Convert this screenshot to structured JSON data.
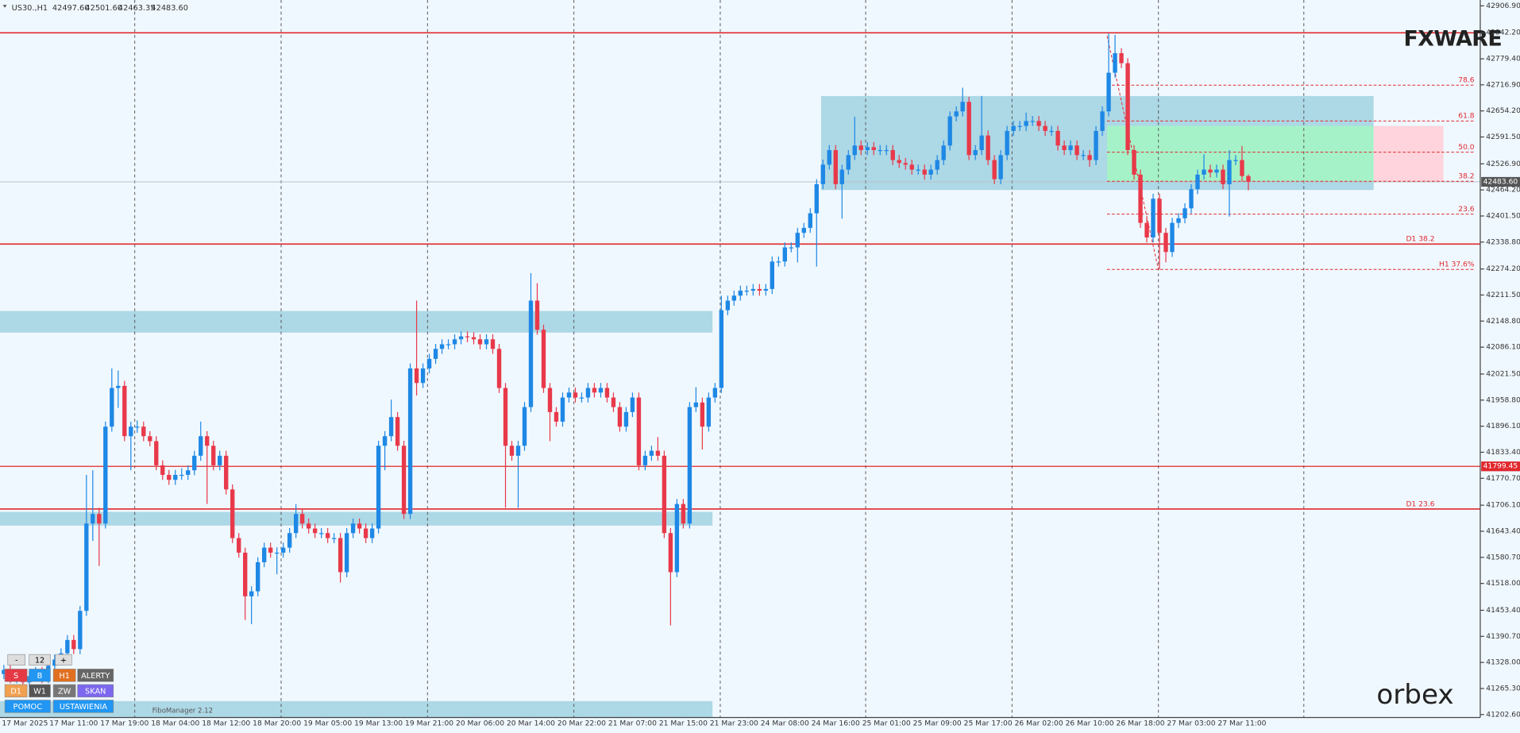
{
  "chart_data": {
    "type": "candlestick",
    "header": {
      "symbol": "US30.,H1",
      "ohlc": [
        "42497.60",
        "42501.60",
        "42463.35",
        "42483.60"
      ]
    },
    "categories": [
      "17 Mar 2025",
      null,
      null,
      null,
      null,
      null,
      null,
      null,
      null,
      null,
      null,
      "17 Mar 11:00",
      null,
      null,
      null,
      null,
      null,
      null,
      null,
      "17 Mar 19:00",
      null,
      null,
      null,
      null,
      null,
      null,
      null,
      "18 Mar 04:00",
      null,
      null,
      null,
      null,
      null,
      null,
      null,
      "18 Mar 12:00",
      null,
      null,
      null,
      null,
      null,
      null,
      null,
      "18 Mar 20:00",
      null,
      null,
      null,
      null,
      null,
      null,
      null,
      "19 Mar 05:00",
      null,
      null,
      null,
      null,
      null,
      null,
      null,
      "19 Mar 13:00",
      null,
      null,
      null,
      null,
      null,
      null,
      null,
      "19 Mar 21:00",
      null,
      null,
      null,
      null,
      null,
      null,
      null,
      "20 Mar 06:00",
      null,
      null,
      null,
      null,
      null,
      null,
      null,
      "20 Mar 14:00",
      null,
      null,
      null,
      null,
      null,
      null,
      null,
      "20 Mar 22:00",
      null,
      null,
      null,
      null,
      null,
      null,
      null,
      "21 Mar 07:00",
      null,
      null,
      null,
      null,
      null,
      null,
      null,
      "21 Mar 15:00",
      null,
      null,
      null,
      null,
      null,
      null,
      null,
      "21 Mar 23:00",
      null,
      null,
      null,
      null,
      null,
      null,
      null,
      "24 Mar 08:00",
      null,
      null,
      null,
      null,
      null,
      null,
      null,
      "24 Mar 16:00",
      null,
      null,
      null,
      null,
      null,
      null,
      null,
      "25 Mar 01:00",
      null,
      null,
      null,
      null,
      null,
      null,
      null,
      "25 Mar 09:00",
      null,
      null,
      null,
      null,
      null,
      null,
      null,
      "25 Mar 17:00",
      null,
      null,
      null,
      null,
      null,
      null,
      null,
      "26 Mar 02:00",
      null,
      null,
      null,
      null,
      null,
      null,
      null,
      "26 Mar 10:00",
      null,
      null,
      null,
      null,
      null,
      null,
      null,
      "26 Mar 18:00",
      null,
      null,
      null,
      null,
      null,
      null,
      null,
      "27 Mar 03:00",
      null,
      null,
      null,
      null,
      null,
      null,
      null,
      "27 Mar 11:00",
      null
    ],
    "open": [
      41300,
      41310,
      41290,
      41300,
      41280,
      41295,
      41305,
      41290,
      41320,
      41335,
      41350,
      41382,
      41360,
      41452,
      41662,
      41685,
      41662,
      41895,
      41988,
      41993,
      41872,
      41895,
      41895,
      41872,
      41860,
      41802,
      41779,
      41767,
      41779,
      41779,
      41790,
      41825,
      41872,
      41849,
      41802,
      41825,
      41744,
      41627,
      41592,
      41487,
      41499,
      41569,
      41604,
      41592,
      41592,
      41604,
      41639,
      41685,
      41662,
      41650,
      41639,
      41639,
      41627,
      41627,
      41545,
      41639,
      41662,
      41650,
      41627,
      41650,
      41849,
      41872,
      41918,
      41849,
      41685,
      42035,
      42000,
      42035,
      42058,
      42082,
      42093,
      42093,
      42105,
      42112,
      42110,
      42105,
      42093,
      42105,
      42082,
      41988,
      41849,
      41825,
      41849,
      41942,
      42198,
      42128,
      41988,
      41930,
      41907,
      41965,
      41977,
      41965,
      41965,
      41988,
      41977,
      41988,
      41965,
      41942,
      41895,
      41930,
      41965,
      41802,
      41825,
      41837,
      41825,
      41639,
      41545,
      41709,
      41662,
      41942,
      41953,
      41895,
      41965,
      41988,
      42175,
      42198,
      42210,
      42222,
      42222,
      42226,
      42222,
      42226,
      42292,
      42292,
      42326,
      42326,
      42361,
      42373,
      42408,
      42478,
      42525,
      42560,
      42478,
      42513,
      42548,
      42571,
      42560,
      42567,
      42560,
      42560,
      42560,
      42536,
      42529,
      42525,
      42513,
      42513,
      42501,
      42513,
      42536,
      42571,
      42641,
      42653,
      42676,
      42548,
      42560,
      42595,
      42536,
      42490,
      42548,
      42606,
      42618,
      42618,
      42630,
      42630,
      42618,
      42606,
      42606,
      42571,
      42560,
      42571,
      42548,
      42548,
      42536,
      42606,
      42653,
      42746,
      42793,
      42769,
      42560,
      42501,
      42385,
      42350,
      42443,
      42361,
      42315,
      42385,
      42396,
      42420,
      42466,
      42501,
      42513,
      42506,
      42513,
      42478,
      42536,
      42536,
      42497.6
    ],
    "high": [
      41322,
      41322,
      41312,
      41312,
      41307,
      41317,
      41317,
      41332,
      41347,
      41362,
      41394,
      41394,
      41464,
      41779,
      41790,
      41700,
      41907,
      42035,
      42030,
      42005,
      41907,
      41910,
      41907,
      41884,
      41872,
      41814,
      41791,
      41791,
      41795,
      41802,
      41837,
      41907,
      41884,
      41861,
      41837,
      41837,
      41756,
      41639,
      41604,
      41511,
      41581,
      41616,
      41616,
      41605,
      41616,
      41651,
      41709,
      41697,
      41674,
      41662,
      41651,
      41651,
      41639,
      41639,
      41651,
      41674,
      41674,
      41662,
      41662,
      41861,
      41884,
      41960,
      41930,
      41861,
      42047,
      42198,
      42047,
      42070,
      42094,
      42105,
      42105,
      42117,
      42124,
      42124,
      42122,
      42117,
      42117,
      42117,
      42094,
      42000,
      41861,
      41861,
      41954,
      42264,
      42240,
      42140,
      42000,
      41942,
      41977,
      41989,
      41989,
      41977,
      42000,
      42000,
      42000,
      42000,
      41977,
      41954,
      41942,
      41977,
      41977,
      41837,
      41849,
      41870,
      41837,
      41651,
      41721,
      41721,
      41954,
      41990,
      41965,
      41977,
      42000,
      42210,
      42210,
      42222,
      42234,
      42234,
      42238,
      42238,
      42238,
      42304,
      42304,
      42338,
      42338,
      42373,
      42385,
      42420,
      42490,
      42537,
      42572,
      42572,
      42525,
      42560,
      42640,
      42583,
      42579,
      42579,
      42572,
      42572,
      42572,
      42548,
      42541,
      42537,
      42525,
      42525,
      42525,
      42548,
      42583,
      42653,
      42665,
      42710,
      42688,
      42572,
      42690,
      42607,
      42548,
      42560,
      42618,
      42630,
      42630,
      42650,
      42642,
      42642,
      42630,
      42618,
      42618,
      42583,
      42583,
      42583,
      42560,
      42560,
      42618,
      42665,
      42840,
      42837,
      42805,
      42781,
      42572,
      42513,
      42397,
      42455,
      42455,
      42373,
      42397,
      42408,
      42432,
      42478,
      42513,
      42550,
      42525,
      42525,
      42525,
      42560,
      42548,
      42570,
      42501.6
    ],
    "low": [
      41288,
      41278,
      41278,
      41268,
      41268,
      41283,
      41278,
      41278,
      41308,
      41323,
      41338,
      41348,
      41348,
      41440,
      41620,
      41560,
      41650,
      41883,
      41940,
      41860,
      41790,
      41880,
      41860,
      41848,
      41790,
      41767,
      41755,
      41755,
      41767,
      41767,
      41778,
      41813,
      41709,
      41790,
      41790,
      41732,
      41615,
      41580,
      41430,
      41420,
      41487,
      41557,
      41580,
      41540,
      41580,
      41592,
      41627,
      41650,
      41638,
      41627,
      41627,
      41615,
      41615,
      41520,
      41533,
      41627,
      41638,
      41615,
      41615,
      41638,
      41790,
      41860,
      41837,
      41673,
      41673,
      41970,
      41988,
      42023,
      42046,
      42070,
      42081,
      42081,
      42093,
      42098,
      42093,
      42081,
      42081,
      42070,
      41976,
      41700,
      41813,
      41700,
      41837,
      41930,
      42116,
      41976,
      41860,
      41895,
      41895,
      41953,
      41953,
      41953,
      41953,
      41965,
      41965,
      41953,
      41930,
      41883,
      41883,
      41918,
      41790,
      41790,
      41813,
      41813,
      41627,
      41417,
      41533,
      41650,
      41650,
      41930,
      41840,
      41883,
      41953,
      41976,
      42163,
      42186,
      42198,
      42210,
      42210,
      42210,
      42210,
      42214,
      42280,
      42280,
      42314,
      42290,
      42349,
      42361,
      42280,
      42466,
      42513,
      42466,
      42395,
      42501,
      42536,
      42548,
      42548,
      42548,
      42548,
      42548,
      42524,
      42517,
      42513,
      42501,
      42501,
      42489,
      42489,
      42501,
      42524,
      42559,
      42629,
      42641,
      42536,
      42536,
      42548,
      42524,
      42478,
      42478,
      42536,
      42594,
      42606,
      42606,
      42618,
      42606,
      42594,
      42594,
      42559,
      42548,
      42548,
      42536,
      42536,
      42520,
      42524,
      42594,
      42641,
      42734,
      42757,
      42548,
      42489,
      42373,
      42338,
      42338,
      42273,
      42290,
      42303,
      42373,
      42384,
      42408,
      42454,
      42489,
      42494,
      42494,
      42466,
      42400,
      42524,
      42485,
      42463.35
    ],
    "close": [
      41310,
      41290,
      41300,
      41280,
      41295,
      41305,
      41290,
      41320,
      41335,
      41350,
      41382,
      41360,
      41452,
      41662,
      41685,
      41662,
      41895,
      41988,
      41993,
      41872,
      41895,
      41895,
      41872,
      41860,
      41802,
      41779,
      41767,
      41779,
      41779,
      41790,
      41825,
      41872,
      41849,
      41802,
      41825,
      41744,
      41627,
      41592,
      41487,
      41499,
      41569,
      41604,
      41592,
      41592,
      41604,
      41639,
      41685,
      41662,
      41650,
      41639,
      41639,
      41627,
      41627,
      41545,
      41639,
      41662,
      41650,
      41627,
      41650,
      41849,
      41872,
      41918,
      41849,
      41685,
      42035,
      42000,
      42035,
      42058,
      42082,
      42093,
      42093,
      42105,
      42112,
      42110,
      42105,
      42093,
      42105,
      42082,
      41988,
      41849,
      41825,
      41849,
      41942,
      42198,
      42128,
      41988,
      41930,
      41907,
      41965,
      41977,
      41965,
      41965,
      41988,
      41977,
      41988,
      41965,
      41942,
      41895,
      41930,
      41965,
      41802,
      41825,
      41837,
      41825,
      41639,
      41545,
      41709,
      41662,
      41942,
      41953,
      41895,
      41965,
      41988,
      42175,
      42198,
      42210,
      42222,
      42222,
      42226,
      42222,
      42226,
      42292,
      42292,
      42326,
      42326,
      42361,
      42373,
      42408,
      42478,
      42525,
      42560,
      42478,
      42513,
      42548,
      42571,
      42560,
      42567,
      42560,
      42560,
      42560,
      42536,
      42529,
      42525,
      42513,
      42513,
      42501,
      42513,
      42536,
      42571,
      42641,
      42653,
      42676,
      42548,
      42560,
      42595,
      42536,
      42490,
      42548,
      42606,
      42618,
      42618,
      42630,
      42630,
      42618,
      42606,
      42606,
      42571,
      42560,
      42571,
      42548,
      42548,
      42536,
      42606,
      42653,
      42746,
      42793,
      42769,
      42560,
      42501,
      42385,
      42350,
      42443,
      42361,
      42315,
      42385,
      42396,
      42420,
      42466,
      42501,
      42513,
      42506,
      42513,
      42478,
      42536,
      42536,
      42497.6,
      42483.6
    ],
    "up_color": "#1e88e5",
    "down_color": "#e8394a",
    "ylim": [
      41202.6,
      42906.9
    ],
    "yticks": [
      {
        "value": 42906.9,
        "label": "42906.90"
      },
      {
        "value": 42842.2,
        "label": "42842.20"
      },
      {
        "value": 42779.4,
        "label": "42779.40"
      },
      {
        "value": 42716.9,
        "label": "42716.90"
      },
      {
        "value": 42654.2,
        "label": "42654.20"
      },
      {
        "value": 42591.5,
        "label": "42591.50"
      },
      {
        "value": 42526.9,
        "label": "42526.90"
      },
      {
        "value": 42464.2,
        "label": "42464.20"
      },
      {
        "value": 42401.5,
        "label": "42401.50"
      },
      {
        "value": 42338.8,
        "label": "42338.80"
      },
      {
        "value": 42274.2,
        "label": "42274.20"
      },
      {
        "value": 42211.5,
        "label": "42211.50"
      },
      {
        "value": 42148.8,
        "label": "42148.80"
      },
      {
        "value": 42086.1,
        "label": "42086.10"
      },
      {
        "value": 42021.5,
        "label": "42021.50"
      },
      {
        "value": 41958.8,
        "label": "41958.80"
      },
      {
        "value": 41896.1,
        "label": "41896.10"
      },
      {
        "value": 41833.4,
        "label": "41833.40"
      },
      {
        "value": 41770.7,
        "label": "41770.70"
      },
      {
        "value": 41706.1,
        "label": "41706.10"
      },
      {
        "value": 41643.4,
        "label": "41643.40"
      },
      {
        "value": 41580.7,
        "label": "41580.70"
      },
      {
        "value": 41518,
        "label": "41518.00"
      },
      {
        "value": 41453.4,
        "label": "41453.40"
      },
      {
        "value": 41390.7,
        "label": "41390.70"
      },
      {
        "value": 41328,
        "label": "41328.00"
      },
      {
        "value": 41265.3,
        "label": "41265.30"
      },
      {
        "value": 41202.6,
        "label": "41202.60"
      }
    ],
    "zones": [
      {
        "low": 42121,
        "high": 42173,
        "color": "#add8e6"
      },
      {
        "low": 41657,
        "high": 41690,
        "color": "#add8e6"
      },
      {
        "low": 41193,
        "high": 41235,
        "color": "#add8e6"
      },
      {
        "low": 42464,
        "high": 42690,
        "color": "#add8e6"
      },
      {
        "low": 42485,
        "high": 42618,
        "color": "#a6f2c8"
      },
      {
        "low": 42485,
        "high": 42618,
        "color": "#ffd4dc"
      }
    ],
    "level_color": "#e0282e",
    "levels": [
      {
        "value": 42842
      },
      {
        "value": 42334,
        "label": "D1 38.2"
      },
      {
        "value": 41697,
        "label": "D1 23.6"
      }
    ],
    "alert_line": 41799.45,
    "last_price": {
      "value": 42483.6,
      "label": "42483.60"
    },
    "fib_levels": [
      {
        "label": "78.6",
        "value": 42716
      },
      {
        "label": "61.8",
        "value": 42630
      },
      {
        "label": "50.0",
        "value": 42555
      },
      {
        "label": "38.2",
        "value": 42485
      },
      {
        "label": "23.6",
        "value": 42406
      },
      {
        "label": "H1 37.6%",
        "value": 42273
      }
    ]
  },
  "toolbar": {
    "buttons": [
      [
        "-",
        "12",
        "+"
      ],
      [
        "S",
        "B",
        "H1",
        "ALERTY"
      ],
      [
        "D1",
        "W1",
        "ZW",
        "SKAN"
      ],
      [
        "POMOC",
        "USTAWIENIA"
      ]
    ],
    "plugin": "FiboManager 2.12"
  },
  "logos": {
    "top": "FXWARE",
    "bottom": "orbex"
  }
}
